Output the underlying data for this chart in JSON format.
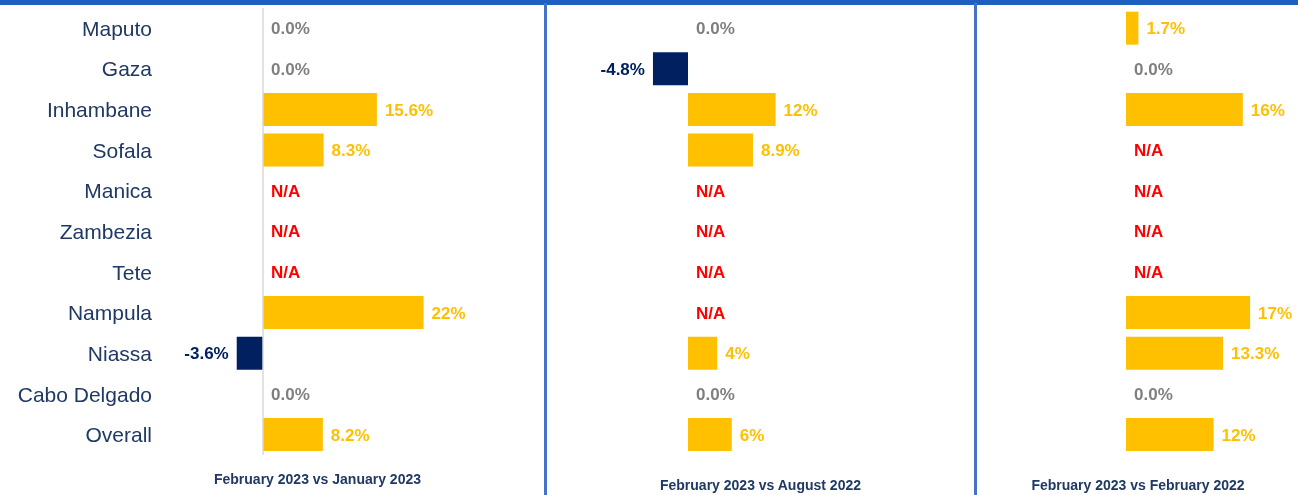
{
  "chart_data": [
    {
      "type": "bar",
      "orientation": "horizontal",
      "xlabel": "February 2023 vs January 2023",
      "categories": [
        "Maputo",
        "Gaza",
        "Inhambane",
        "Sofala",
        "Manica",
        "Zambezia",
        "Tete",
        "Nampula",
        "Niassa",
        "Cabo Delgado",
        "Overall"
      ],
      "values": [
        0,
        0,
        15.6,
        8.3,
        null,
        null,
        null,
        22,
        -3.6,
        0,
        8.2
      ],
      "value_labels": [
        "0.0%",
        "0.0%",
        "15.6%",
        "8.3%",
        "N/A",
        "N/A",
        "N/A",
        "22%",
        "-3.6%",
        "0.0%",
        "8.2%"
      ],
      "colors": [
        "#ffc000",
        "#ffc000",
        "#ffc000",
        "#ffc000",
        "#ffc000",
        "#ffc000",
        "#ffc000",
        "#ffc000",
        "#002060",
        "#ffc000",
        "#ffc000"
      ],
      "grid": false,
      "legend": false
    },
    {
      "type": "bar",
      "orientation": "horizontal",
      "xlabel": "February 2023 vs August 2022",
      "categories": [
        null,
        null,
        null,
        null,
        null,
        null,
        null,
        null,
        null,
        null,
        null
      ],
      "values": [
        0,
        -4.8,
        12,
        8.9,
        null,
        null,
        null,
        null,
        4,
        0,
        6
      ],
      "value_labels": [
        "0.0%",
        "-4.8%",
        "12%",
        "8.9%",
        "N/A",
        "N/A",
        "N/A",
        "N/A",
        "4%",
        "0.0%",
        "6%"
      ],
      "colors": [
        "#ffc000",
        "#002060",
        "#ffc000",
        "#ffc000",
        "#ffc000",
        "#ffc000",
        "#ffc000",
        "#ffc000",
        "#ffc000",
        "#ffc000",
        "#ffc000"
      ],
      "tick_labels": false,
      "grid": false,
      "legend": false
    },
    {
      "type": "bar",
      "orientation": "horizontal",
      "xlabel": "February 2023 vs February 2022",
      "categories": [
        null,
        null,
        null,
        null,
        null,
        null,
        null,
        null,
        null,
        null,
        null
      ],
      "values": [
        1.7,
        0,
        16,
        null,
        null,
        null,
        null,
        17,
        13.3,
        0,
        12
      ],
      "value_labels": [
        "1.7%",
        "0.0%",
        "16%",
        "N/A",
        "N/A",
        "N/A",
        "N/A",
        "17%",
        "13.3%",
        "0.0%",
        "12%"
      ],
      "colors": [
        "#ffc000",
        "#ffc000",
        "#ffc000",
        "#ffc000",
        "#ffc000",
        "#ffc000",
        "#ffc000",
        "#ffc000",
        "#ffc000",
        "#ffc000",
        "#ffc000"
      ],
      "tick_labels": false,
      "grid": false,
      "legend": false
    }
  ]
}
